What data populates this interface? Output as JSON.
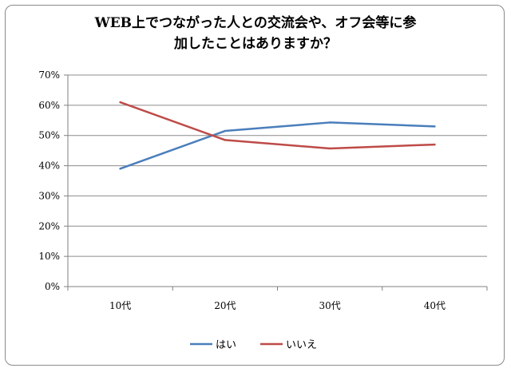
{
  "chart_data": {
    "type": "line",
    "title_lines": [
      "WEB上でつながった人との交流会や、オフ会等に参",
      "加したことはありますか？"
    ],
    "categories": [
      "10代",
      "20代",
      "30代",
      "40代"
    ],
    "yticks": [
      "0%",
      "10%",
      "20%",
      "30%",
      "40%",
      "50%",
      "60%",
      "70%"
    ],
    "ylim": [
      0,
      70
    ],
    "grid": true,
    "legend_position": "bottom",
    "series": [
      {
        "name": "はい",
        "values": [
          39,
          51.5,
          54.3,
          53
        ],
        "color": "#4a7ebb"
      },
      {
        "name": "いいえ",
        "values": [
          61,
          48.5,
          45.7,
          47
        ],
        "color": "#be4b48"
      }
    ]
  }
}
